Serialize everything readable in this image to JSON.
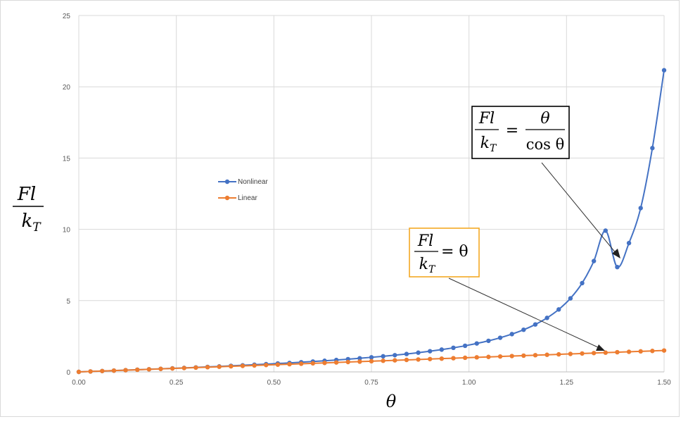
{
  "chart_data": {
    "type": "line",
    "xlabel": "θ",
    "ylabel": {
      "numerator": "Fl",
      "denominator_base": "k",
      "denominator_sub": "T"
    },
    "xlim": [
      0,
      1.5
    ],
    "ylim": [
      0,
      25
    ],
    "xticks": [
      "0.00",
      "0.25",
      "0.50",
      "0.75",
      "1.00",
      "1.25",
      "1.50"
    ],
    "yticks": [
      "0",
      "5",
      "10",
      "15",
      "20",
      "25"
    ],
    "grid": true,
    "legend_position": "center-left",
    "x": [
      0,
      0.03,
      0.06,
      0.09,
      0.12,
      0.15,
      0.18,
      0.21,
      0.24,
      0.27,
      0.3,
      0.33,
      0.36,
      0.39,
      0.42,
      0.45,
      0.48,
      0.51,
      0.54,
      0.57,
      0.6,
      0.63,
      0.66,
      0.69,
      0.72,
      0.75,
      0.78,
      0.81,
      0.84,
      0.87,
      0.9,
      0.93,
      0.96,
      0.99,
      1.02,
      1.05,
      1.08,
      1.11,
      1.14,
      1.17,
      1.2,
      1.23,
      1.26,
      1.29,
      1.32,
      1.35,
      1.38,
      1.41,
      1.44,
      1.47,
      1.5
    ],
    "series": [
      {
        "name": "Nonlinear",
        "color": "#4472c4",
        "values": [
          0,
          0.03,
          0.06,
          0.09,
          0.121,
          0.152,
          0.183,
          0.215,
          0.247,
          0.28,
          0.314,
          0.349,
          0.385,
          0.423,
          0.462,
          0.503,
          0.545,
          0.59,
          0.629,
          0.677,
          0.727,
          0.779,
          0.834,
          0.892,
          0.955,
          1.022,
          1.094,
          1.172,
          1.256,
          1.348,
          1.45,
          1.563,
          1.689,
          1.831,
          1.993,
          2.179,
          2.395,
          2.65,
          2.955,
          3.326,
          3.788,
          4.379,
          5.158,
          6.227,
          7.776,
          9.908,
          7.353,
          9.035,
          11.49,
          15.7,
          21.16
        ]
      },
      {
        "name": "Linear",
        "color": "#ed7d31",
        "values": [
          0,
          0.03,
          0.06,
          0.09,
          0.12,
          0.15,
          0.18,
          0.21,
          0.24,
          0.27,
          0.3,
          0.33,
          0.36,
          0.39,
          0.42,
          0.45,
          0.48,
          0.51,
          0.54,
          0.57,
          0.6,
          0.63,
          0.66,
          0.69,
          0.72,
          0.75,
          0.78,
          0.81,
          0.84,
          0.87,
          0.9,
          0.93,
          0.96,
          0.99,
          1.02,
          1.05,
          1.08,
          1.11,
          1.14,
          1.17,
          1.2,
          1.23,
          1.26,
          1.29,
          1.32,
          1.35,
          1.38,
          1.41,
          1.44,
          1.47,
          1.5
        ]
      }
    ],
    "annotations": [
      {
        "name": "nonlinear-formula",
        "numerator": "Fl",
        "denominator_base": "k",
        "denominator_sub": "T",
        "equals": "=",
        "rhs_numerator": "θ",
        "rhs_denominator": "cos θ",
        "border_color": "#000000",
        "points_to": [
          1.38,
          7.5
        ]
      },
      {
        "name": "linear-formula",
        "numerator": "Fl",
        "denominator_base": "k",
        "denominator_sub": "T",
        "equals": "= θ",
        "border_color": "#f4a824",
        "points_to": [
          1.35,
          1.4
        ]
      }
    ]
  }
}
